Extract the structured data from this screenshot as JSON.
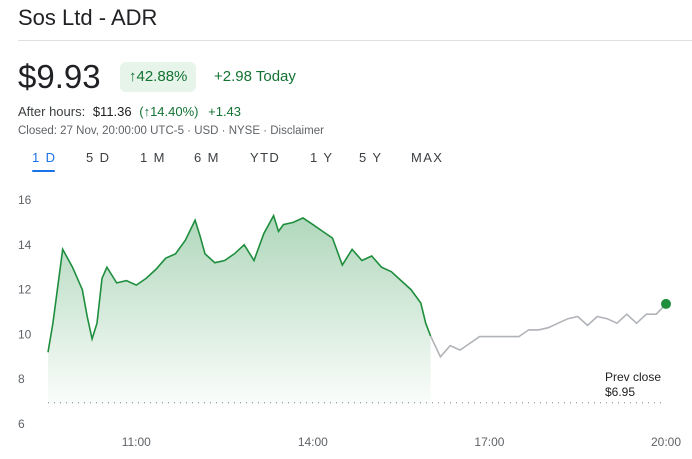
{
  "header": {
    "title": "Sos Ltd - ADR"
  },
  "quote": {
    "price": "$9.93",
    "change_percent": "42.88%",
    "change_today": "+2.98 Today",
    "after_hours_label": "After hours:",
    "after_hours_price": "$11.36",
    "after_hours_change_percent": "(↑14.40%)",
    "after_hours_change": "+1.43",
    "closed_info": "Closed: 27 Nov, 20:00:00 UTC-5 · USD · NYSE · ",
    "disclaimer": "Disclaimer",
    "up_color": "#137333",
    "arrow_icon": "arrow-up-icon"
  },
  "tabs": [
    {
      "label": "1 D",
      "active": true
    },
    {
      "label": "5 D"
    },
    {
      "label": "1 M"
    },
    {
      "label": "6 M"
    },
    {
      "label": "YTD"
    },
    {
      "label": "1 Y"
    },
    {
      "label": "5 Y"
    },
    {
      "label": "MAX"
    }
  ],
  "chart": {
    "prev_close_label": "Prev close",
    "prev_close_value": "$6.95",
    "line_color": "#1e8e3e",
    "after_hours_color": "#b0b3b8"
  },
  "chart_data": {
    "type": "line",
    "x_ticks": [
      "11:00",
      "14:00",
      "17:00",
      "20:00"
    ],
    "y_ticks": [
      "6",
      "8",
      "10",
      "12",
      "14",
      "16"
    ],
    "ylim": [
      6,
      16
    ],
    "reference_line": 6.95,
    "regular_session": {
      "x": [
        "09:30",
        "09:35",
        "09:45",
        "09:55",
        "10:05",
        "10:10",
        "10:15",
        "10:20",
        "10:25",
        "10:30",
        "10:40",
        "10:50",
        "11:00",
        "11:10",
        "11:20",
        "11:30",
        "11:40",
        "11:50",
        "12:00",
        "12:05",
        "12:10",
        "12:20",
        "12:30",
        "12:40",
        "12:50",
        "13:00",
        "13:10",
        "13:20",
        "13:25",
        "13:30",
        "13:40",
        "13:50",
        "14:00",
        "14:10",
        "14:20",
        "14:30",
        "14:40",
        "14:50",
        "15:00",
        "15:10",
        "15:20",
        "15:30",
        "15:40",
        "15:50",
        "15:55",
        "16:00"
      ],
      "y": [
        9.2,
        10.5,
        13.8,
        13.0,
        12.0,
        10.8,
        9.8,
        10.5,
        12.5,
        13.0,
        12.3,
        12.4,
        12.2,
        12.5,
        12.9,
        13.4,
        13.6,
        14.2,
        15.1,
        14.4,
        13.6,
        13.2,
        13.3,
        13.6,
        14.0,
        13.3,
        14.5,
        15.3,
        14.6,
        14.9,
        15.0,
        15.2,
        14.9,
        14.6,
        14.3,
        13.1,
        13.8,
        13.3,
        13.5,
        13.0,
        12.8,
        12.4,
        12.0,
        11.4,
        10.5,
        9.93
      ]
    },
    "after_hours": {
      "x": [
        "16:00",
        "16:10",
        "16:20",
        "16:30",
        "16:40",
        "16:50",
        "17:00",
        "17:10",
        "17:20",
        "17:30",
        "17:40",
        "17:50",
        "18:00",
        "18:10",
        "18:20",
        "18:30",
        "18:40",
        "18:50",
        "19:00",
        "19:10",
        "19:20",
        "19:30",
        "19:40",
        "19:50",
        "20:00"
      ],
      "y": [
        9.93,
        9.0,
        9.5,
        9.3,
        9.6,
        9.9,
        9.9,
        9.9,
        9.9,
        9.9,
        10.2,
        10.2,
        10.3,
        10.5,
        10.7,
        10.8,
        10.4,
        10.8,
        10.7,
        10.5,
        10.9,
        10.5,
        10.9,
        10.9,
        11.36
      ]
    },
    "grid": false
  }
}
